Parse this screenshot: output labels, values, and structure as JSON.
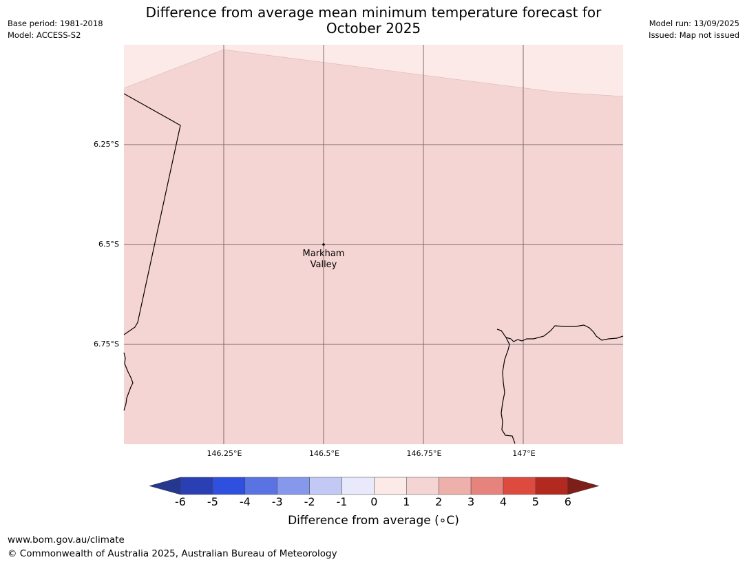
{
  "header": {
    "title_line1": "Difference from average mean minimum temperature forecast for",
    "title_line2": "October 2025",
    "base_period": "Base period: 1981-2018",
    "model": "Model: ACCESS-S2",
    "model_run": "Model run: 13/09/2025",
    "issued": "Issued: Map not issued"
  },
  "map": {
    "lon_ticks": [
      "146.25°E",
      "146.5°E",
      "146.75°E",
      "147°E"
    ],
    "lat_ticks": [
      "6.25°S",
      "6.5°S",
      "6.75°S"
    ],
    "place_label_line1": "Markham",
    "place_label_line2": "Valley",
    "colors": {
      "main_fill": "#f5d5d3",
      "upper_fill": "#fbeae8",
      "gridline": "#7a6a6a",
      "coastline": "#000000"
    }
  },
  "colorbar": {
    "ticks": [
      "-6",
      "-5",
      "-4",
      "-3",
      "-2",
      "-1",
      "0",
      "1",
      "2",
      "3",
      "4",
      "5",
      "6"
    ],
    "label": "Difference from average (∘C)",
    "colors": [
      "#25388f",
      "#2a3fb4",
      "#2f50de",
      "#5a73e2",
      "#8598ec",
      "#c2c9f4",
      "#e8eafc",
      "#fbeae8",
      "#f5d5d3",
      "#eeb0aa",
      "#e6837c",
      "#dd4b3f",
      "#b2291f",
      "#7e1e18"
    ]
  },
  "footer": {
    "website": "www.bom.gov.au/climate",
    "copyright": "© Commonwealth of Australia 2025, Australian Bureau of Meteorology"
  }
}
